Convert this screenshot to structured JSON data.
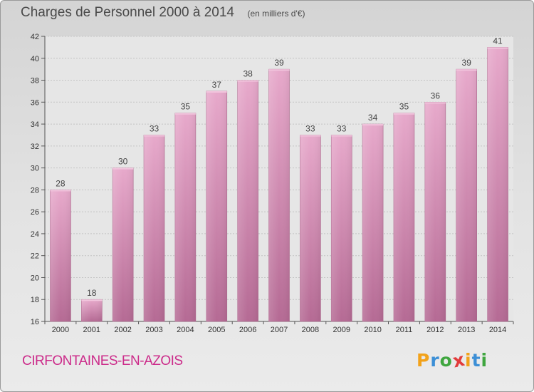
{
  "header": {
    "title": "Charges de Personnel 2000 à 2014",
    "subtitle": "(en milliers d'€)"
  },
  "footer": {
    "commune": "CIRFONTAINES-EN-AZOIS",
    "logo_letters": [
      "P",
      "r",
      "o",
      "x",
      "i",
      "t",
      "i"
    ],
    "logo_colors": [
      "#f2a21a",
      "#3c8fd6",
      "#3fa63f",
      "#e23b3b",
      "#f2a21a",
      "#3c8fd6",
      "#3fa63f"
    ]
  },
  "chart_data": {
    "type": "bar",
    "categories": [
      "2000",
      "2001",
      "2002",
      "2003",
      "2004",
      "2005",
      "2006",
      "2007",
      "2008",
      "2009",
      "2010",
      "2011",
      "2012",
      "2013",
      "2014"
    ],
    "values": [
      28,
      18,
      30,
      33,
      35,
      37,
      38,
      39,
      33,
      33,
      34,
      35,
      36,
      39,
      41
    ],
    "title": "Charges de Personnel 2000 à 2014",
    "ylim": [
      16,
      42
    ],
    "yticks": [
      16,
      18,
      20,
      22,
      24,
      26,
      28,
      30,
      32,
      34,
      36,
      38,
      40,
      42
    ],
    "grid": true,
    "bar_color": "#c9709f"
  }
}
